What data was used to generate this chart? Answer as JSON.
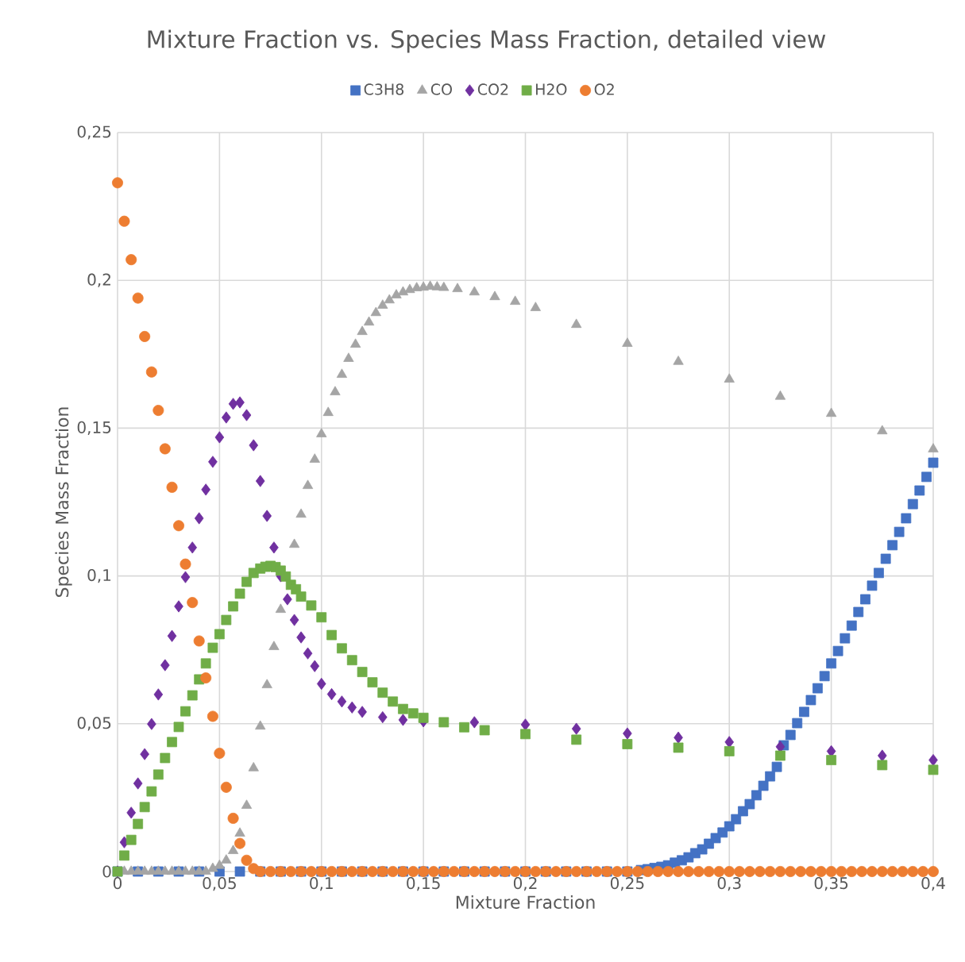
{
  "chart_data": {
    "type": "scatter",
    "title": "Mixture Fraction vs. Species Mass Fraction, detailed view",
    "xlabel": "Mixture Fraction",
    "ylabel": "Species Mass Fraction",
    "xlim": [
      0,
      0.4
    ],
    "ylim": [
      0,
      0.25
    ],
    "xticks": [
      0,
      {
        "value": 0.05,
        "label": "0,05"
      },
      {
        "value": 0.1,
        "label": "0,1"
      },
      {
        "value": 0.15,
        "label": "0,15"
      },
      {
        "value": 0.2,
        "label": "0,2"
      },
      {
        "value": 0.25,
        "label": "0,25"
      },
      {
        "value": 0.3,
        "label": "0,3"
      },
      {
        "value": 0.35,
        "label": "0,35"
      },
      {
        "value": 0.4,
        "label": "0,4"
      }
    ],
    "yticks": [
      0,
      {
        "value": 0.05,
        "label": "0,05"
      },
      {
        "value": 0.1,
        "label": "0,1"
      },
      {
        "value": 0.15,
        "label": "0,15"
      },
      {
        "value": 0.2,
        "label": "0,2"
      },
      {
        "value": 0.25,
        "label": "0,25"
      }
    ],
    "grid": true,
    "legend": "top",
    "series": [
      {
        "name": "C3H8",
        "color": "#4472c4",
        "marker": "square",
        "x": [
          0,
          0.01,
          0.02,
          0.03,
          0.04,
          0.05,
          0.06,
          0.07,
          0.08,
          0.09,
          0.1,
          0.11,
          0.12,
          0.13,
          0.14,
          0.15,
          0.16,
          0.17,
          0.18,
          0.19,
          0.2,
          0.21,
          0.22,
          0.23,
          0.24,
          0.25,
          0.2567,
          0.26,
          0.2633,
          0.2667,
          0.27,
          0.2733,
          0.2767,
          0.28,
          0.2833,
          0.2867,
          0.29,
          0.2933,
          0.2967,
          0.3,
          0.3033,
          0.3067,
          0.31,
          0.3133,
          0.3167,
          0.32,
          0.3233,
          0.3267,
          0.33,
          0.3333,
          0.3367,
          0.34,
          0.3433,
          0.3467,
          0.35,
          0.3533,
          0.3567,
          0.36,
          0.3633,
          0.3667,
          0.37,
          0.3733,
          0.3767,
          0.38,
          0.3833,
          0.3867,
          0.39,
          0.3933,
          0.3967,
          0.4
        ],
        "values": [
          0,
          0,
          0,
          0,
          0,
          0,
          0,
          0,
          0,
          0,
          0,
          0,
          0,
          0,
          0,
          0,
          0,
          0,
          0,
          0,
          0,
          0,
          0,
          0,
          0,
          0,
          0.0005,
          0.0008,
          0.0012,
          0.0016,
          0.0021,
          0.003,
          0.0038,
          0.0048,
          0.0062,
          0.0075,
          0.0094,
          0.0113,
          0.0132,
          0.0153,
          0.0177,
          0.0204,
          0.0228,
          0.0258,
          0.029,
          0.0322,
          0.0354,
          0.0427,
          0.0462,
          0.0502,
          0.054,
          0.058,
          0.062,
          0.0661,
          0.0704,
          0.0746,
          0.0789,
          0.0832,
          0.0878,
          0.0921,
          0.0967,
          0.101,
          0.1058,
          0.1104,
          0.1149,
          0.1195,
          0.1243,
          0.1289,
          0.1335,
          0.1383
        ]
      },
      {
        "name": "CO",
        "color": "#a5a5a5",
        "marker": "triangle",
        "x": [
          0.0033,
          0.0067,
          0.01,
          0.0133,
          0.0167,
          0.02,
          0.0233,
          0.0267,
          0.03,
          0.0333,
          0.0367,
          0.04,
          0.0433,
          0.0467,
          0.05,
          0.0533,
          0.0567,
          0.06,
          0.0633,
          0.0667,
          0.07,
          0.0733,
          0.0767,
          0.08,
          0.0867,
          0.09,
          0.0933,
          0.0967,
          0.1,
          0.1033,
          0.1067,
          0.11,
          0.1133,
          0.1167,
          0.12,
          0.1233,
          0.1267,
          0.13,
          0.1333,
          0.1367,
          0.14,
          0.1433,
          0.1467,
          0.15,
          0.1533,
          0.1567,
          0.16,
          0.1667,
          0.175,
          0.185,
          0.195,
          0.205,
          0.225,
          0.25,
          0.275,
          0.3,
          0.325,
          0.35,
          0.375,
          0.4
        ],
        "values": [
          0,
          0,
          0,
          0,
          0,
          0,
          0,
          0,
          0,
          0,
          0,
          0,
          0,
          0.001,
          0.002,
          0.0038,
          0.007,
          0.0129,
          0.0223,
          0.035,
          0.0491,
          0.0631,
          0.076,
          0.0886,
          0.1106,
          0.1208,
          0.1305,
          0.1394,
          0.148,
          0.1552,
          0.1622,
          0.1681,
          0.1735,
          0.1783,
          0.1826,
          0.1858,
          0.189,
          0.1915,
          0.1933,
          0.195,
          0.196,
          0.1968,
          0.1974,
          0.1976,
          0.1979,
          0.1977,
          0.1975,
          0.1971,
          0.196,
          0.1944,
          0.1928,
          0.1907,
          0.185,
          0.1786,
          0.1725,
          0.1665,
          0.1607,
          0.1549,
          0.149,
          0.1429
        ]
      },
      {
        "name": "CO2",
        "color": "#7030a0",
        "marker": "diamond",
        "x": [
          0,
          0.0033,
          0.0067,
          0.01,
          0.0133,
          0.0167,
          0.02,
          0.0233,
          0.0267,
          0.03,
          0.0333,
          0.0367,
          0.04,
          0.0433,
          0.0467,
          0.05,
          0.0533,
          0.0567,
          0.06,
          0.0633,
          0.0667,
          0.07,
          0.0733,
          0.0767,
          0.08,
          0.0833,
          0.0867,
          0.09,
          0.0933,
          0.0967,
          0.1,
          0.105,
          0.11,
          0.115,
          0.12,
          0.13,
          0.14,
          0.15,
          0.175,
          0.2,
          0.225,
          0.25,
          0.275,
          0.3,
          0.325,
          0.35,
          0.375,
          0.4
        ],
        "values": [
          0,
          0.0099,
          0.0199,
          0.0298,
          0.0397,
          0.0499,
          0.0599,
          0.0698,
          0.0797,
          0.0897,
          0.0996,
          0.1096,
          0.1195,
          0.1292,
          0.1386,
          0.1469,
          0.1536,
          0.1582,
          0.1587,
          0.1544,
          0.1442,
          0.1321,
          0.1203,
          0.1096,
          0.0999,
          0.0921,
          0.0851,
          0.0792,
          0.0738,
          0.0695,
          0.0635,
          0.06,
          0.0575,
          0.0555,
          0.054,
          0.0522,
          0.0513,
          0.0508,
          0.0505,
          0.0497,
          0.0483,
          0.0467,
          0.0453,
          0.0438,
          0.0422,
          0.0407,
          0.0392,
          0.0377
        ]
      },
      {
        "name": "H2O",
        "color": "#70ad47",
        "marker": "square",
        "x": [
          0,
          0.0033,
          0.0067,
          0.01,
          0.0133,
          0.0167,
          0.02,
          0.0233,
          0.0267,
          0.03,
          0.0333,
          0.0367,
          0.04,
          0.0433,
          0.0467,
          0.05,
          0.0533,
          0.0567,
          0.06,
          0.0633,
          0.0667,
          0.07,
          0.0725,
          0.075,
          0.0775,
          0.08,
          0.0825,
          0.085,
          0.0875,
          0.09,
          0.095,
          0.1,
          0.105,
          0.11,
          0.115,
          0.12,
          0.125,
          0.13,
          0.135,
          0.14,
          0.145,
          0.15,
          0.16,
          0.17,
          0.18,
          0.2,
          0.225,
          0.25,
          0.275,
          0.3,
          0.325,
          0.35,
          0.375,
          0.4
        ],
        "values": [
          0,
          0.0054,
          0.0107,
          0.0161,
          0.0218,
          0.0271,
          0.0328,
          0.0384,
          0.0438,
          0.0489,
          0.0542,
          0.0596,
          0.065,
          0.0704,
          0.0757,
          0.0803,
          0.0851,
          0.0897,
          0.094,
          0.098,
          0.101,
          0.1025,
          0.1031,
          0.1034,
          0.103,
          0.1018,
          0.0998,
          0.097,
          0.0955,
          0.093,
          0.09,
          0.086,
          0.08,
          0.0755,
          0.0715,
          0.0675,
          0.064,
          0.0605,
          0.0575,
          0.055,
          0.0535,
          0.052,
          0.0505,
          0.0488,
          0.0478,
          0.0465,
          0.0446,
          0.0431,
          0.0419,
          0.0407,
          0.0392,
          0.0377,
          0.036,
          0.0344
        ]
      },
      {
        "name": "O2",
        "color": "#ed7d31",
        "marker": "circle",
        "x": [
          0,
          0.0033,
          0.0067,
          0.01,
          0.0133,
          0.0167,
          0.02,
          0.0233,
          0.0267,
          0.03,
          0.0333,
          0.0367,
          0.04,
          0.0433,
          0.0467,
          0.05,
          0.0533,
          0.0567,
          0.06,
          0.0633,
          0.0667,
          0.07,
          0.075,
          0.08,
          0.085,
          0.09,
          0.095,
          0.1,
          0.105,
          0.11,
          0.115,
          0.12,
          0.125,
          0.13,
          0.135,
          0.14,
          0.145,
          0.15,
          0.155,
          0.16,
          0.165,
          0.17,
          0.175,
          0.18,
          0.185,
          0.19,
          0.195,
          0.2,
          0.205,
          0.21,
          0.215,
          0.22,
          0.225,
          0.23,
          0.235,
          0.24,
          0.245,
          0.25,
          0.255,
          0.26,
          0.265,
          0.27,
          0.275,
          0.28,
          0.285,
          0.29,
          0.295,
          0.3,
          0.305,
          0.31,
          0.315,
          0.32,
          0.325,
          0.33,
          0.335,
          0.34,
          0.345,
          0.35,
          0.355,
          0.36,
          0.365,
          0.37,
          0.375,
          0.38,
          0.385,
          0.39,
          0.395,
          0.4
        ],
        "values": [
          0.233,
          0.22,
          0.207,
          0.194,
          0.181,
          0.169,
          0.156,
          0.143,
          0.13,
          0.117,
          0.104,
          0.091,
          0.078,
          0.0655,
          0.0525,
          0.04,
          0.0285,
          0.018,
          0.0095,
          0.0038,
          0.001,
          0,
          0,
          0,
          0,
          0,
          0,
          0,
          0,
          0,
          0,
          0,
          0,
          0,
          0,
          0,
          0,
          0,
          0,
          0,
          0,
          0,
          0,
          0,
          0,
          0,
          0,
          0,
          0,
          0,
          0,
          0,
          0,
          0,
          0,
          0,
          0,
          0,
          0,
          0,
          0,
          0,
          0,
          0,
          0,
          0,
          0,
          0,
          0,
          0,
          0,
          0,
          0,
          0,
          0,
          0,
          0,
          0,
          0,
          0,
          0,
          0,
          0,
          0,
          0,
          0,
          0,
          0
        ]
      }
    ]
  }
}
